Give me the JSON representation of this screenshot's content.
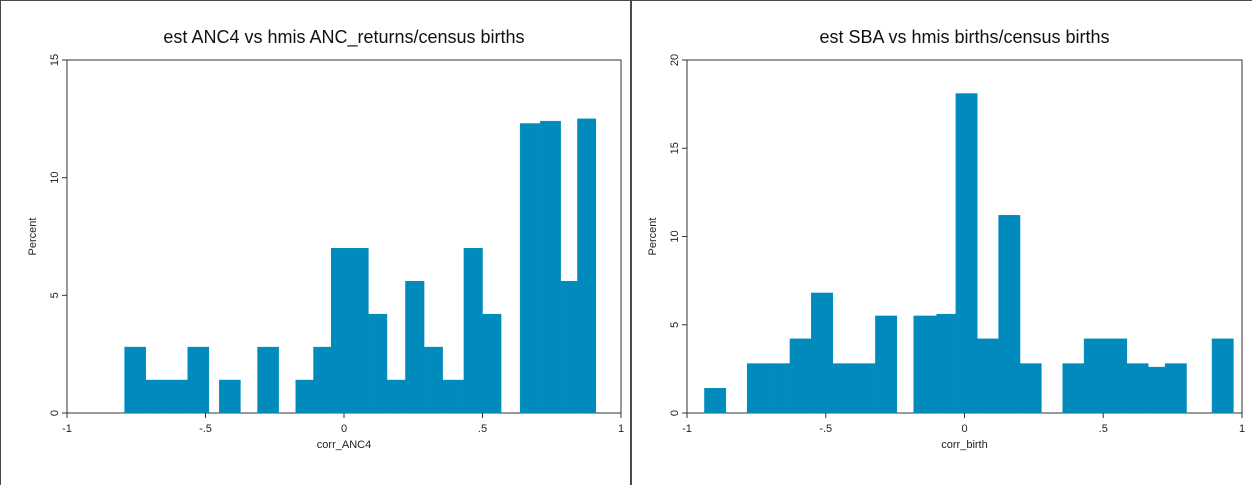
{
  "chart_data": [
    {
      "type": "bar",
      "title": "est ANC4 vs hmis ANC_returns/census births",
      "xlabel": "corr_ANC4",
      "ylabel": "Percent",
      "xlim": [
        -1,
        1
      ],
      "ylim": [
        0,
        15
      ],
      "xticks": [
        -1,
        -0.5,
        0,
        0.5,
        1
      ],
      "xtick_labels": [
        "-1",
        "-.5",
        "0",
        ".5",
        "1"
      ],
      "yticks": [
        0,
        5,
        10,
        15
      ],
      "ytick_labels": [
        "0",
        "5",
        "10",
        "15"
      ],
      "bar_color": "#008bbc",
      "bins": [
        {
          "x0": -0.792,
          "x1": -0.716,
          "value": 2.8
        },
        {
          "x0": -0.716,
          "x1": -0.64,
          "value": 1.4
        },
        {
          "x0": -0.64,
          "x1": -0.564,
          "value": 1.4
        },
        {
          "x0": -0.564,
          "x1": -0.488,
          "value": 2.8
        },
        {
          "x0": -0.45,
          "x1": -0.374,
          "value": 1.4
        },
        {
          "x0": -0.312,
          "x1": -0.236,
          "value": 2.8
        },
        {
          "x0": -0.174,
          "x1": -0.11,
          "value": 1.4
        },
        {
          "x0": -0.11,
          "x1": -0.046,
          "value": 2.8
        },
        {
          "x0": -0.046,
          "x1": 0.088,
          "value": 7.0
        },
        {
          "x0": 0.088,
          "x1": 0.155,
          "value": 4.2
        },
        {
          "x0": 0.155,
          "x1": 0.222,
          "value": 1.4
        },
        {
          "x0": 0.222,
          "x1": 0.289,
          "value": 5.6
        },
        {
          "x0": 0.289,
          "x1": 0.356,
          "value": 2.8
        },
        {
          "x0": 0.356,
          "x1": 0.433,
          "value": 1.4
        },
        {
          "x0": 0.433,
          "x1": 0.5,
          "value": 7.0
        },
        {
          "x0": 0.5,
          "x1": 0.567,
          "value": 4.2
        },
        {
          "x0": 0.636,
          "x1": 0.709,
          "value": 12.3
        },
        {
          "x0": 0.709,
          "x1": 0.782,
          "value": 12.4
        },
        {
          "x0": 0.782,
          "x1": 0.843,
          "value": 5.6
        },
        {
          "x0": 0.843,
          "x1": 0.909,
          "value": 12.5
        }
      ]
    },
    {
      "type": "bar",
      "title": "est SBA vs hmis births/census births",
      "xlabel": "corr_birth",
      "ylabel": "Percent",
      "xlim": [
        -1,
        1
      ],
      "ylim": [
        0,
        20
      ],
      "xticks": [
        -1,
        -0.5,
        0,
        0.5,
        1
      ],
      "xtick_labels": [
        "-1",
        "-.5",
        "0",
        ".5",
        "1"
      ],
      "yticks": [
        0,
        5,
        10,
        15,
        20
      ],
      "ytick_labels": [
        "0",
        "5",
        "10",
        "15",
        "20"
      ],
      "bar_color": "#008bbc",
      "bins": [
        {
          "x0": -0.937,
          "x1": -0.86,
          "value": 1.4
        },
        {
          "x0": -0.783,
          "x1": -0.706,
          "value": 2.8
        },
        {
          "x0": -0.706,
          "x1": -0.629,
          "value": 2.8
        },
        {
          "x0": -0.629,
          "x1": -0.552,
          "value": 4.2
        },
        {
          "x0": -0.552,
          "x1": -0.475,
          "value": 6.8
        },
        {
          "x0": -0.475,
          "x1": -0.398,
          "value": 2.8
        },
        {
          "x0": -0.398,
          "x1": -0.321,
          "value": 2.8
        },
        {
          "x0": -0.321,
          "x1": -0.244,
          "value": 5.5
        },
        {
          "x0": -0.183,
          "x1": -0.1,
          "value": 5.5
        },
        {
          "x0": -0.1,
          "x1": -0.031,
          "value": 5.6
        },
        {
          "x0": -0.031,
          "x1": 0.046,
          "value": 18.1
        },
        {
          "x0": 0.046,
          "x1": 0.123,
          "value": 4.2
        },
        {
          "x0": 0.123,
          "x1": 0.2,
          "value": 11.2
        },
        {
          "x0": 0.2,
          "x1": 0.277,
          "value": 2.8
        },
        {
          "x0": 0.354,
          "x1": 0.431,
          "value": 2.8
        },
        {
          "x0": 0.431,
          "x1": 0.508,
          "value": 4.2
        },
        {
          "x0": 0.508,
          "x1": 0.585,
          "value": 4.2
        },
        {
          "x0": 0.585,
          "x1": 0.662,
          "value": 2.8
        },
        {
          "x0": 0.662,
          "x1": 0.723,
          "value": 2.6
        },
        {
          "x0": 0.723,
          "x1": 0.8,
          "value": 2.8
        },
        {
          "x0": 0.892,
          "x1": 0.969,
          "value": 4.2
        }
      ]
    }
  ]
}
